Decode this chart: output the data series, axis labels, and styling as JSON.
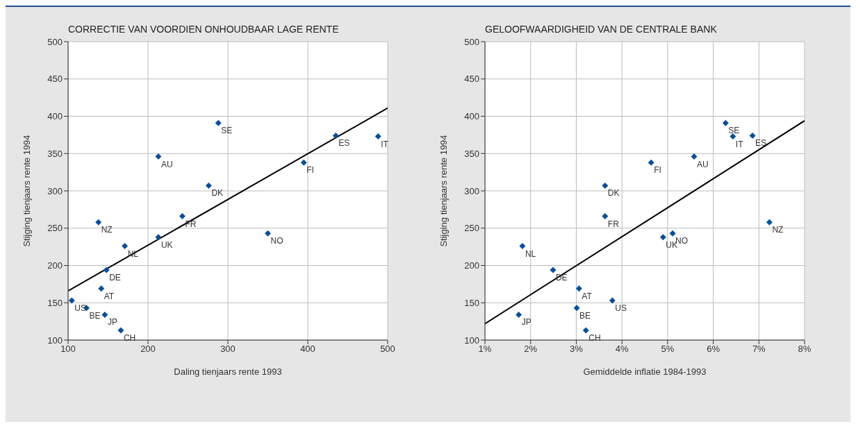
{
  "chart_data": [
    {
      "type": "scatter",
      "title": "CORRECTIE VAN VOORDIEN ONHOUDBAAR LAGE RENTE",
      "xlabel": "Daling tienjaars rente 1993",
      "ylabel": "Stijging tienjaars rente 1994",
      "xlim": [
        100,
        500
      ],
      "xticks": [
        100,
        200,
        300,
        400,
        500
      ],
      "ylim": [
        100,
        500
      ],
      "yticks": [
        100,
        150,
        200,
        250,
        300,
        350,
        400,
        450,
        500
      ],
      "grid": true,
      "legend": false,
      "marker": "diamond",
      "series": [
        {
          "color": "#0b4f96",
          "x": [
            104.6,
            123,
            146,
            166,
            141.5,
            148,
            138,
            171,
            213,
            213,
            243,
            276,
            288,
            350,
            395,
            435,
            488
          ],
          "values": [
            153,
            143,
            134,
            113,
            169,
            194,
            258,
            226,
            238,
            346,
            266,
            307,
            391,
            243,
            338,
            374,
            373
          ]
        },
        {
          "type": "line",
          "color": "#000000",
          "line_style": "solid",
          "marker": "none",
          "x": [
            100,
            500
          ],
          "values": [
            166,
            411
          ]
        }
      ],
      "annotations": [
        {
          "text": "US",
          "x": 104.6,
          "y": 153
        },
        {
          "text": "BE",
          "x": 123,
          "y": 143
        },
        {
          "text": "JP",
          "x": 146,
          "y": 134
        },
        {
          "text": "CH",
          "x": 166,
          "y": 113
        },
        {
          "text": "AT",
          "x": 141.5,
          "y": 169
        },
        {
          "text": "DE",
          "x": 148,
          "y": 194
        },
        {
          "text": "NZ",
          "x": 138,
          "y": 258
        },
        {
          "text": "NL",
          "x": 171,
          "y": 226
        },
        {
          "text": "UK",
          "x": 213,
          "y": 238
        },
        {
          "text": "AU",
          "x": 213,
          "y": 346
        },
        {
          "text": "FR",
          "x": 243,
          "y": 266
        },
        {
          "text": "DK",
          "x": 276,
          "y": 307
        },
        {
          "text": "SE",
          "x": 288,
          "y": 391
        },
        {
          "text": "NO",
          "x": 350,
          "y": 243
        },
        {
          "text": "FI",
          "x": 395,
          "y": 338
        },
        {
          "text": "ES",
          "x": 435,
          "y": 374
        },
        {
          "text": "IT",
          "x": 488,
          "y": 373
        }
      ]
    },
    {
      "type": "scatter",
      "title": "GELOOFWAARDIGHEID VAN DE CENTRALE BANK",
      "xlabel": "Gemiddelde inflatie 1984-1993",
      "ylabel": "Stijging tienjaars rente 1994",
      "xlim": [
        1,
        8
      ],
      "xticks": [
        {
          "value": 1,
          "label": "1%"
        },
        {
          "value": 2,
          "label": "2%"
        },
        {
          "value": 3,
          "label": "3%"
        },
        {
          "value": 4,
          "label": "4%"
        },
        {
          "value": 5,
          "label": "5%"
        },
        {
          "value": 6,
          "label": "6%"
        },
        {
          "value": 7,
          "label": "7%"
        },
        {
          "value": 8,
          "label": "8%"
        }
      ],
      "ylim": [
        100,
        500
      ],
      "yticks": [
        100,
        150,
        200,
        250,
        300,
        350,
        400,
        450,
        500
      ],
      "grid": true,
      "legend": false,
      "marker": "diamond",
      "series": [
        {
          "color": "#0b4f96",
          "x": [
            1.82,
            1.74,
            2.49,
            3.01,
            3.06,
            3.21,
            3.79,
            3.63,
            3.63,
            4.64,
            4.9,
            5.11,
            5.58,
            6.27,
            6.43,
            6.86,
            7.23
          ],
          "values": [
            226,
            134,
            194,
            143,
            169,
            113,
            153,
            266,
            307,
            338,
            238,
            243,
            346,
            391,
            373,
            374,
            258
          ]
        },
        {
          "type": "line",
          "color": "#000000",
          "line_style": "solid",
          "marker": "none",
          "x": [
            1,
            8
          ],
          "values": [
            122,
            394
          ]
        }
      ],
      "annotations": [
        {
          "text": "NL",
          "x": 1.82,
          "y": 226
        },
        {
          "text": "JP",
          "x": 1.74,
          "y": 134
        },
        {
          "text": "DE",
          "x": 2.49,
          "y": 194
        },
        {
          "text": "BE",
          "x": 3.01,
          "y": 143
        },
        {
          "text": "AT",
          "x": 3.06,
          "y": 169
        },
        {
          "text": "CH",
          "x": 3.21,
          "y": 113
        },
        {
          "text": "US",
          "x": 3.79,
          "y": 153
        },
        {
          "text": "FR",
          "x": 3.63,
          "y": 266
        },
        {
          "text": "DK",
          "x": 3.63,
          "y": 307
        },
        {
          "text": "FI",
          "x": 4.64,
          "y": 338
        },
        {
          "text": "UK",
          "x": 4.9,
          "y": 238
        },
        {
          "text": "NO",
          "x": 5.11,
          "y": 243
        },
        {
          "text": "AU",
          "x": 5.58,
          "y": 346
        },
        {
          "text": "SE",
          "x": 6.27,
          "y": 391
        },
        {
          "text": "IT",
          "x": 6.43,
          "y": 373
        },
        {
          "text": "ES",
          "x": 6.86,
          "y": 374
        },
        {
          "text": "NZ",
          "x": 7.23,
          "y": 258
        }
      ]
    }
  ]
}
